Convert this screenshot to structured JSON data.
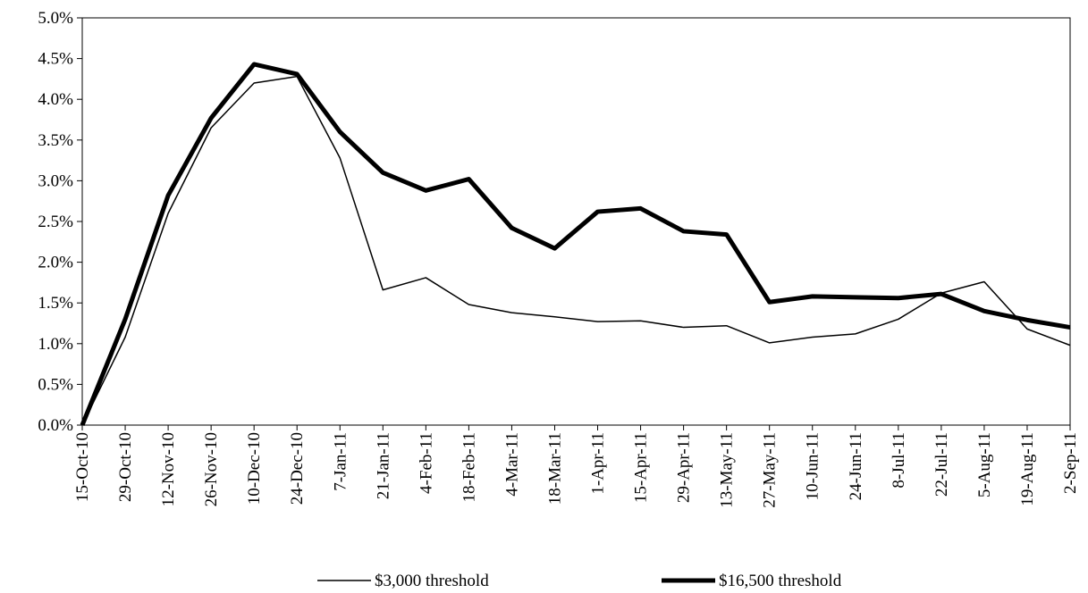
{
  "chart_data": {
    "type": "line",
    "categories": [
      "15-Oct-10",
      "29-Oct-10",
      "12-Nov-10",
      "26-Nov-10",
      "10-Dec-10",
      "24-Dec-10",
      "7-Jan-11",
      "21-Jan-11",
      "4-Feb-11",
      "18-Feb-11",
      "4-Mar-11",
      "18-Mar-11",
      "1-Apr-11",
      "15-Apr-11",
      "29-Apr-11",
      "13-May-11",
      "27-May-11",
      "10-Jun-11",
      "24-Jun-11",
      "8-Jul-11",
      "22-Jul-11",
      "5-Aug-11",
      "19-Aug-11",
      "2-Sep-11"
    ],
    "series": [
      {
        "name": "$3,000 threshold",
        "color": "#000000",
        "line_width": 1.5,
        "values": [
          0,
          1.08,
          2.6,
          3.65,
          4.2,
          4.28,
          3.28,
          1.66,
          1.81,
          1.48,
          1.38,
          1.33,
          1.27,
          1.28,
          1.2,
          1.22,
          1.01,
          1.08,
          1.12,
          1.3,
          1.62,
          1.76,
          1.18,
          0.98
        ]
      },
      {
        "name": "$16,500 threshold",
        "color": "#000000",
        "line_width": 5,
        "values": [
          0,
          1.3,
          2.82,
          3.77,
          4.43,
          4.31,
          3.6,
          3.1,
          2.88,
          3.02,
          2.42,
          2.17,
          2.62,
          2.66,
          2.38,
          2.34,
          1.51,
          1.58,
          1.57,
          1.56,
          1.61,
          1.4,
          1.29,
          1.2
        ]
      }
    ],
    "ylim": [
      0,
      5
    ],
    "yticks": [
      {
        "value": 0,
        "label": "0.0%"
      },
      {
        "value": 0.5,
        "label": "0.5%"
      },
      {
        "value": 1,
        "label": "1.0%"
      },
      {
        "value": 1.5,
        "label": "1.5%"
      },
      {
        "value": 2,
        "label": "2.0%"
      },
      {
        "value": 2.5,
        "label": "2.5%"
      },
      {
        "value": 3,
        "label": "3.0%"
      },
      {
        "value": 3.5,
        "label": "3.5%"
      },
      {
        "value": 4,
        "label": "4.0%"
      },
      {
        "value": 4.5,
        "label": "4.5%"
      },
      {
        "value": 5,
        "label": "5.0%"
      }
    ],
    "grid": false,
    "legend": "bottom"
  }
}
